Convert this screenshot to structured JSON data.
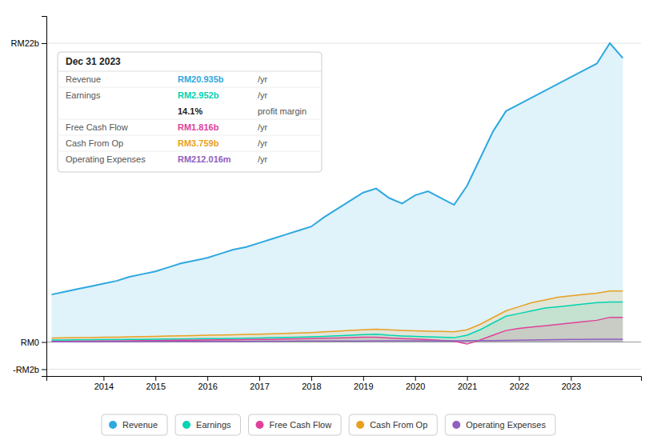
{
  "chart_data": {
    "type": "area",
    "x": [
      2013.0,
      2013.25,
      2013.5,
      2013.75,
      2014.0,
      2014.25,
      2014.5,
      2014.75,
      2015.0,
      2015.25,
      2015.5,
      2015.75,
      2016.0,
      2016.25,
      2016.5,
      2016.75,
      2017.0,
      2017.25,
      2017.5,
      2017.75,
      2018.0,
      2018.25,
      2018.5,
      2018.75,
      2019.0,
      2019.25,
      2019.5,
      2019.75,
      2020.0,
      2020.25,
      2020.5,
      2020.75,
      2021.0,
      2021.25,
      2021.5,
      2021.75,
      2022.0,
      2022.25,
      2022.5,
      2022.75,
      2023.0,
      2023.25,
      2023.5,
      2023.75,
      2024.0
    ],
    "series": [
      {
        "name": "Revenue",
        "color": "#2ea8e0",
        "values": [
          3.5,
          3.7,
          3.9,
          4.1,
          4.3,
          4.5,
          4.8,
          5.0,
          5.2,
          5.5,
          5.8,
          6.0,
          6.2,
          6.5,
          6.8,
          7.0,
          7.3,
          7.6,
          7.9,
          8.2,
          8.5,
          9.2,
          9.8,
          10.4,
          11.0,
          11.3,
          10.6,
          10.2,
          10.8,
          11.1,
          10.6,
          10.1,
          11.5,
          13.5,
          15.5,
          17.0,
          17.5,
          18.0,
          18.5,
          19.0,
          19.5,
          20.0,
          20.5,
          22.0,
          20.9
        ]
      },
      {
        "name": "Earnings",
        "color": "#00d4b0",
        "values": [
          0.15,
          0.15,
          0.16,
          0.17,
          0.18,
          0.18,
          0.19,
          0.2,
          0.21,
          0.22,
          0.23,
          0.24,
          0.25,
          0.26,
          0.27,
          0.28,
          0.3,
          0.32,
          0.34,
          0.36,
          0.38,
          0.42,
          0.46,
          0.5,
          0.55,
          0.58,
          0.5,
          0.45,
          0.42,
          0.38,
          0.35,
          0.32,
          0.5,
          0.9,
          1.4,
          1.9,
          2.1,
          2.3,
          2.5,
          2.6,
          2.7,
          2.8,
          2.9,
          2.95,
          2.952
        ]
      },
      {
        "name": "Free Cash Flow",
        "color": "#e0409a",
        "values": [
          0.05,
          0.05,
          0.06,
          0.06,
          0.08,
          0.08,
          0.09,
          0.1,
          0.11,
          0.12,
          0.13,
          0.14,
          0.15,
          0.16,
          0.17,
          0.18,
          0.19,
          0.2,
          0.22,
          0.24,
          0.26,
          0.28,
          0.3,
          0.32,
          0.35,
          0.36,
          0.3,
          0.26,
          0.22,
          0.18,
          0.12,
          0.06,
          -0.15,
          0.15,
          0.5,
          0.85,
          1.0,
          1.1,
          1.2,
          1.3,
          1.4,
          1.5,
          1.6,
          1.82,
          1.816
        ]
      },
      {
        "name": "Cash From Op",
        "color": "#e8a020",
        "values": [
          0.3,
          0.31,
          0.32,
          0.33,
          0.35,
          0.36,
          0.38,
          0.4,
          0.42,
          0.44,
          0.46,
          0.48,
          0.5,
          0.52,
          0.54,
          0.56,
          0.58,
          0.6,
          0.63,
          0.66,
          0.7,
          0.75,
          0.8,
          0.85,
          0.9,
          0.95,
          0.9,
          0.86,
          0.82,
          0.8,
          0.78,
          0.76,
          0.9,
          1.3,
          1.8,
          2.3,
          2.6,
          2.9,
          3.1,
          3.3,
          3.4,
          3.5,
          3.6,
          3.76,
          3.759
        ]
      },
      {
        "name": "Operating Expenses",
        "color": "#9060c0",
        "values": [
          0.02,
          0.02,
          0.02,
          0.02,
          0.03,
          0.03,
          0.03,
          0.03,
          0.04,
          0.04,
          0.04,
          0.04,
          0.05,
          0.05,
          0.05,
          0.05,
          0.06,
          0.06,
          0.06,
          0.07,
          0.07,
          0.07,
          0.08,
          0.08,
          0.08,
          0.09,
          0.09,
          0.09,
          0.09,
          0.09,
          0.09,
          0.09,
          0.1,
          0.1,
          0.11,
          0.12,
          0.13,
          0.15,
          0.17,
          0.18,
          0.19,
          0.2,
          0.21,
          0.212,
          0.212
        ]
      }
    ],
    "xlim": [
      2012.9,
      2024.35
    ],
    "ylim": [
      -2.5,
      24.0
    ],
    "xticks": [
      2014,
      2015,
      2016,
      2017,
      2018,
      2019,
      2020,
      2021,
      2022,
      2023
    ],
    "yticks": [
      {
        "value": -2,
        "label": "-RM2b"
      },
      {
        "value": 0,
        "label": "RM0"
      },
      {
        "value": 22,
        "label": "RM22b"
      }
    ],
    "grid": true,
    "legend": "bottom",
    "annotations": [
      [
        {
          "text": "Dec 31 2023"
        }
      ],
      [
        {
          "text": "Revenue"
        },
        {
          "text": "RM20.935b",
          "color": "#2ea8e0"
        },
        {
          "text": "/yr"
        }
      ],
      [
        {
          "text": "Earnings"
        },
        {
          "text": "RM2.952b",
          "color": "#00d4b0"
        },
        {
          "text": "/yr"
        }
      ],
      [
        {
          "text": "14.1%"
        },
        {
          "text": "profit margin"
        }
      ],
      [
        {
          "text": "Free Cash Flow"
        },
        {
          "text": "RM1.816b",
          "color": "#e0409a"
        },
        {
          "text": "/yr"
        }
      ],
      [
        {
          "text": "Cash From Op"
        },
        {
          "text": "RM3.759b",
          "color": "#e8a020"
        },
        {
          "text": "/yr"
        }
      ],
      [
        {
          "text": "Operating Expenses"
        },
        {
          "text": "RM212.016m",
          "color": "#9060c0"
        },
        {
          "text": "/yr"
        }
      ]
    ]
  }
}
